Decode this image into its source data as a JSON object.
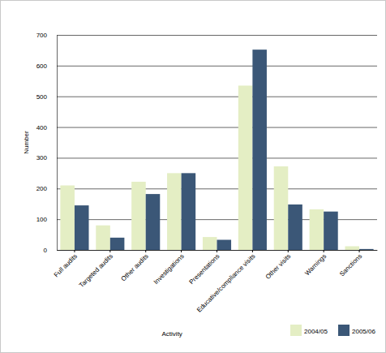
{
  "chart_data": {
    "type": "bar",
    "x_label": "Activity",
    "y_label": "Number",
    "categories": [
      "Full audits",
      "Targeted audits",
      "Other audits",
      "Investigations",
      "Presentations",
      "Educative/compliance visits",
      "Other visits",
      "Warnings",
      "Sanctions"
    ],
    "series": [
      {
        "name": "2004/05",
        "color": "#e4eec4",
        "values": [
          210,
          80,
          222,
          250,
          42,
          535,
          272,
          132,
          12
        ]
      },
      {
        "name": "2005/06",
        "color": "#3b5777",
        "values": [
          145,
          40,
          182,
          250,
          33,
          652,
          148,
          125,
          3
        ]
      }
    ],
    "ylim": [
      0,
      700
    ],
    "yticks": [
      0,
      100,
      200,
      300,
      400,
      500,
      600,
      700
    ],
    "grid": true,
    "legend": "bottom-right"
  }
}
